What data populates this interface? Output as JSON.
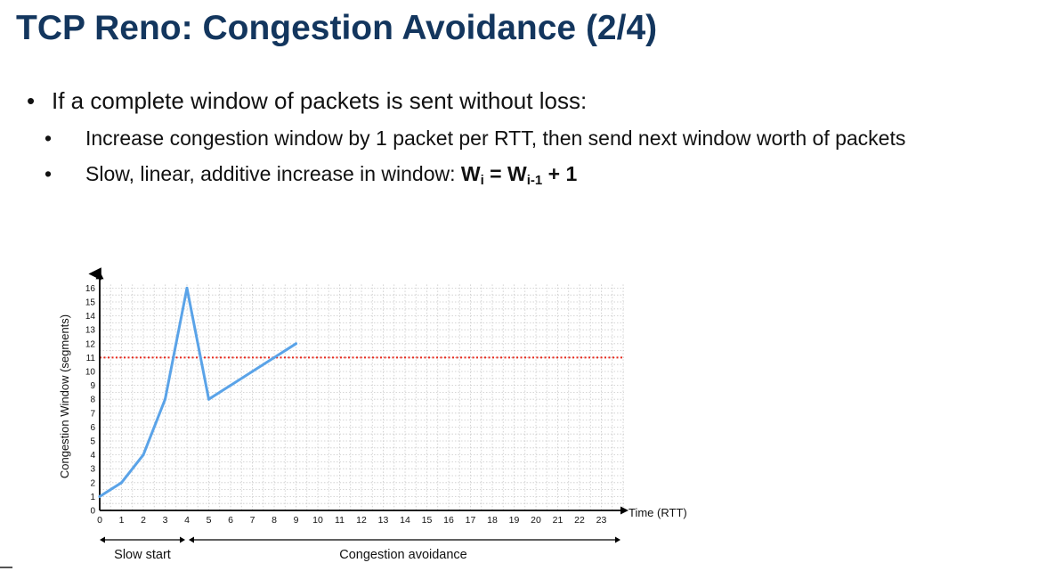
{
  "slide": {
    "title": "TCP Reno: Congestion Avoidance (2/4)"
  },
  "bullets": {
    "main": "If a complete window of packets is sent without loss:",
    "sub1": "Increase congestion window by 1 packet per RTT, then send next window worth of packets",
    "sub2_prefix": "Slow, linear, additive increase in window: ",
    "formula": {
      "lhs": "W",
      "lhs_sub": "i",
      "eq": " = ",
      "rhs": "W",
      "rhs_sub": "i-1",
      "tail": " + 1"
    }
  },
  "chart_data": {
    "type": "line",
    "xlabel": "Time (RTT)",
    "ylabel": "Congestion Window (segments)",
    "xlim": [
      0,
      23
    ],
    "ylim": [
      0,
      16
    ],
    "xticks": [
      0,
      1,
      2,
      3,
      4,
      5,
      6,
      7,
      8,
      9,
      10,
      11,
      12,
      13,
      14,
      15,
      16,
      17,
      18,
      19,
      20,
      21,
      22,
      23
    ],
    "yticks": [
      0,
      1,
      2,
      3,
      4,
      5,
      6,
      7,
      8,
      9,
      10,
      11,
      12,
      13,
      14,
      15,
      16
    ],
    "grid": true,
    "series": [
      {
        "x": [
          0,
          1,
          2,
          3,
          4,
          5,
          6,
          7,
          8,
          9
        ],
        "values": [
          1,
          2,
          4,
          8,
          16,
          8,
          9,
          10,
          11,
          12
        ],
        "color": "#5aa3e8"
      }
    ],
    "threshold": {
      "value": 11,
      "color": "#e8291c",
      "style": "dotted"
    },
    "phases": [
      {
        "label": "Slow start",
        "from": 0,
        "to": 4
      },
      {
        "label": "Congestion avoidance",
        "from": 4,
        "to": 24
      }
    ]
  },
  "colors": {
    "title": "#13365e",
    "line": "#5aa3e8",
    "threshold": "#e8291c"
  }
}
